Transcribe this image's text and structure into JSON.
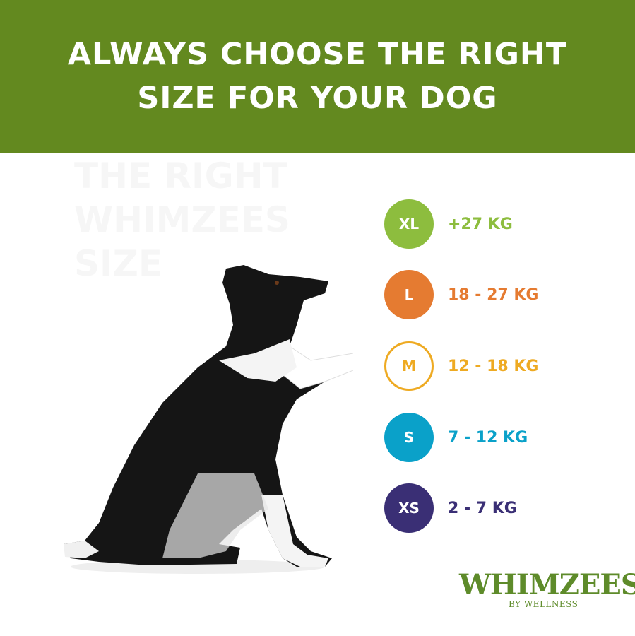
{
  "banner": {
    "title_line1": "ALWAYS CHOOSE THE RIGHT",
    "title_line2": "SIZE FOR YOUR DOG",
    "color": "#63891f"
  },
  "ghost_text": {
    "line1": "THE RIGHT",
    "line2": "WHIMZEES",
    "line3": "SIZE"
  },
  "sizes": [
    {
      "label": "XL",
      "range": "+27 KG",
      "color": "#8dbd3e",
      "outlined": false
    },
    {
      "label": "L",
      "range": "18 - 27 KG",
      "color": "#e57b31",
      "outlined": false
    },
    {
      "label": "M",
      "range": "12 - 18 KG",
      "color": "#eeaa22",
      "outlined": true
    },
    {
      "label": "S",
      "range": "7 - 12 KG",
      "color": "#0aa1c9",
      "outlined": false
    },
    {
      "label": "XS",
      "range": "2 - 7 KG",
      "color": "#3a2f75",
      "outlined": false
    }
  ],
  "logo": {
    "name": "WHIMZEES",
    "sub": "BY WELLNESS",
    "color": "#5e8b2a"
  }
}
